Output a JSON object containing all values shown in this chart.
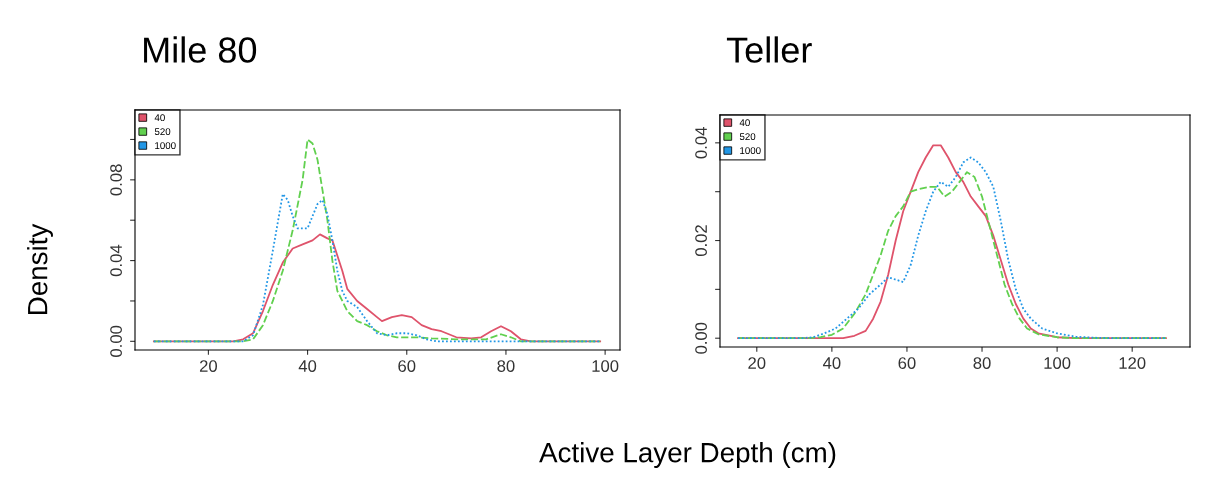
{
  "chart_data": [
    {
      "type": "line",
      "title": "Mile 80",
      "ylabel": "Density",
      "xlabel": "Active Layer Depth (cm)",
      "legend": "top left",
      "grid": false,
      "xlim": [
        5.2,
        103
      ],
      "xticks": [
        20,
        40,
        60,
        80,
        100
      ],
      "ylim": [
        -0.0043,
        0.1146
      ],
      "yticks": [
        {
          "value": 0,
          "label": "0.00"
        },
        {
          "value": 0.02,
          "label": null
        },
        0.04,
        {
          "value": 0.06,
          "label": null
        },
        0.08,
        {
          "value": 0.1,
          "label": null
        }
      ],
      "series": [
        {
          "name": "40",
          "color": "#df536b",
          "line_style": "solid",
          "x": [
            9,
            25,
            27,
            29,
            31,
            33,
            35,
            37,
            39,
            41,
            42.5,
            44,
            45,
            47,
            48,
            50,
            52,
            54,
            55,
            57,
            59,
            61,
            63,
            65,
            67,
            70,
            73,
            75,
            77,
            79,
            81,
            83,
            85,
            99
          ],
          "values": [
            0,
            0,
            0.001,
            0.004,
            0.015,
            0.028,
            0.039,
            0.046,
            0.048,
            0.05,
            0.053,
            0.051,
            0.05,
            0.035,
            0.026,
            0.02,
            0.016,
            0.012,
            0.01,
            0.012,
            0.013,
            0.012,
            0.008,
            0.006,
            0.005,
            0.002,
            0.0015,
            0.002,
            0.005,
            0.0075,
            0.005,
            0.001,
            0,
            0
          ]
        },
        {
          "name": "520",
          "color": "#61d04f",
          "line_style": "dashed",
          "x": [
            9,
            27,
            29,
            31,
            33,
            35,
            37,
            39,
            40,
            41,
            42,
            43,
            44,
            45,
            46,
            48,
            50,
            52,
            54,
            56,
            58,
            60,
            62,
            65,
            70,
            73,
            76,
            79,
            81,
            83,
            99
          ],
          "values": [
            0,
            0,
            0.001,
            0.008,
            0.02,
            0.035,
            0.055,
            0.08,
            0.1,
            0.098,
            0.09,
            0.075,
            0.06,
            0.04,
            0.025,
            0.015,
            0.01,
            0.008,
            0.005,
            0.003,
            0.002,
            0.002,
            0.002,
            0.0015,
            0.001,
            0.001,
            0.001,
            0.0035,
            0.002,
            0,
            0
          ]
        },
        {
          "name": "1000",
          "color": "#2297e6",
          "line_style": "dotted",
          "x": [
            9,
            27,
            29,
            31,
            33,
            35,
            36,
            37,
            38,
            40,
            41,
            42,
            43,
            44,
            45,
            46,
            47,
            48,
            50,
            52,
            54,
            56,
            58,
            60,
            62,
            64,
            66,
            99
          ],
          "values": [
            0,
            0,
            0.003,
            0.018,
            0.045,
            0.073,
            0.07,
            0.062,
            0.056,
            0.056,
            0.062,
            0.068,
            0.07,
            0.063,
            0.05,
            0.035,
            0.025,
            0.02,
            0.017,
            0.01,
            0.004,
            0.003,
            0.004,
            0.004,
            0.003,
            0.001,
            0,
            0
          ]
        }
      ]
    },
    {
      "type": "line",
      "title": "Teller",
      "legend": "top left",
      "grid": false,
      "xlim": [
        10.2,
        135.4
      ],
      "xticks": [
        20,
        40,
        60,
        80,
        100,
        120
      ],
      "ylim": [
        -0.0018,
        0.0457
      ],
      "yticks": [
        {
          "value": 0,
          "label": "0.00"
        },
        {
          "value": 0.01,
          "label": null
        },
        0.02,
        {
          "value": 0.03,
          "label": null
        },
        0.04
      ],
      "series": [
        {
          "name": "40",
          "color": "#df536b",
          "line_style": "solid",
          "x": [
            15,
            35,
            40,
            43,
            46,
            49,
            51,
            53,
            55,
            57,
            59,
            61,
            63,
            65,
            67,
            69,
            71,
            73,
            75,
            77,
            79,
            81,
            83,
            85,
            87,
            89,
            91,
            93,
            95,
            100,
            105,
            129
          ],
          "values": [
            0,
            0,
            0,
            0,
            0.0005,
            0.0015,
            0.004,
            0.0075,
            0.013,
            0.02,
            0.026,
            0.03,
            0.034,
            0.037,
            0.0395,
            0.0395,
            0.037,
            0.034,
            0.032,
            0.029,
            0.027,
            0.025,
            0.021,
            0.016,
            0.011,
            0.007,
            0.004,
            0.002,
            0.001,
            0.0002,
            0,
            0
          ]
        },
        {
          "name": "520",
          "color": "#61d04f",
          "line_style": "dashed",
          "x": [
            15,
            33,
            37,
            40,
            43,
            46,
            49,
            51,
            53,
            55,
            57,
            59,
            61,
            63,
            66,
            68,
            70,
            72,
            74,
            76,
            78,
            80,
            82,
            84,
            86,
            88,
            90,
            92,
            95,
            100,
            105,
            129
          ],
          "values": [
            0,
            0,
            0.0002,
            0.0007,
            0.002,
            0.005,
            0.009,
            0.013,
            0.017,
            0.022,
            0.025,
            0.027,
            0.03,
            0.0305,
            0.031,
            0.031,
            0.029,
            0.03,
            0.032,
            0.034,
            0.033,
            0.029,
            0.023,
            0.017,
            0.011,
            0.007,
            0.004,
            0.002,
            0.0008,
            0.0002,
            0,
            0
          ]
        },
        {
          "name": "1000",
          "color": "#2297e6",
          "line_style": "dotted",
          "x": [
            15,
            32,
            35,
            38,
            41,
            44,
            47,
            50,
            53,
            55,
            57,
            59,
            61,
            63,
            65,
            67,
            69,
            71,
            73,
            75,
            77,
            79,
            81,
            83,
            85,
            87,
            89,
            91,
            93,
            96,
            100,
            105,
            110,
            115,
            129
          ],
          "values": [
            0,
            0,
            0.0002,
            0.001,
            0.002,
            0.004,
            0.006,
            0.009,
            0.011,
            0.0125,
            0.012,
            0.0115,
            0.015,
            0.021,
            0.026,
            0.03,
            0.032,
            0.031,
            0.033,
            0.036,
            0.037,
            0.036,
            0.034,
            0.031,
            0.024,
            0.016,
            0.01,
            0.006,
            0.004,
            0.002,
            0.001,
            0.0003,
            0.0001,
            0,
            0
          ]
        }
      ]
    }
  ]
}
